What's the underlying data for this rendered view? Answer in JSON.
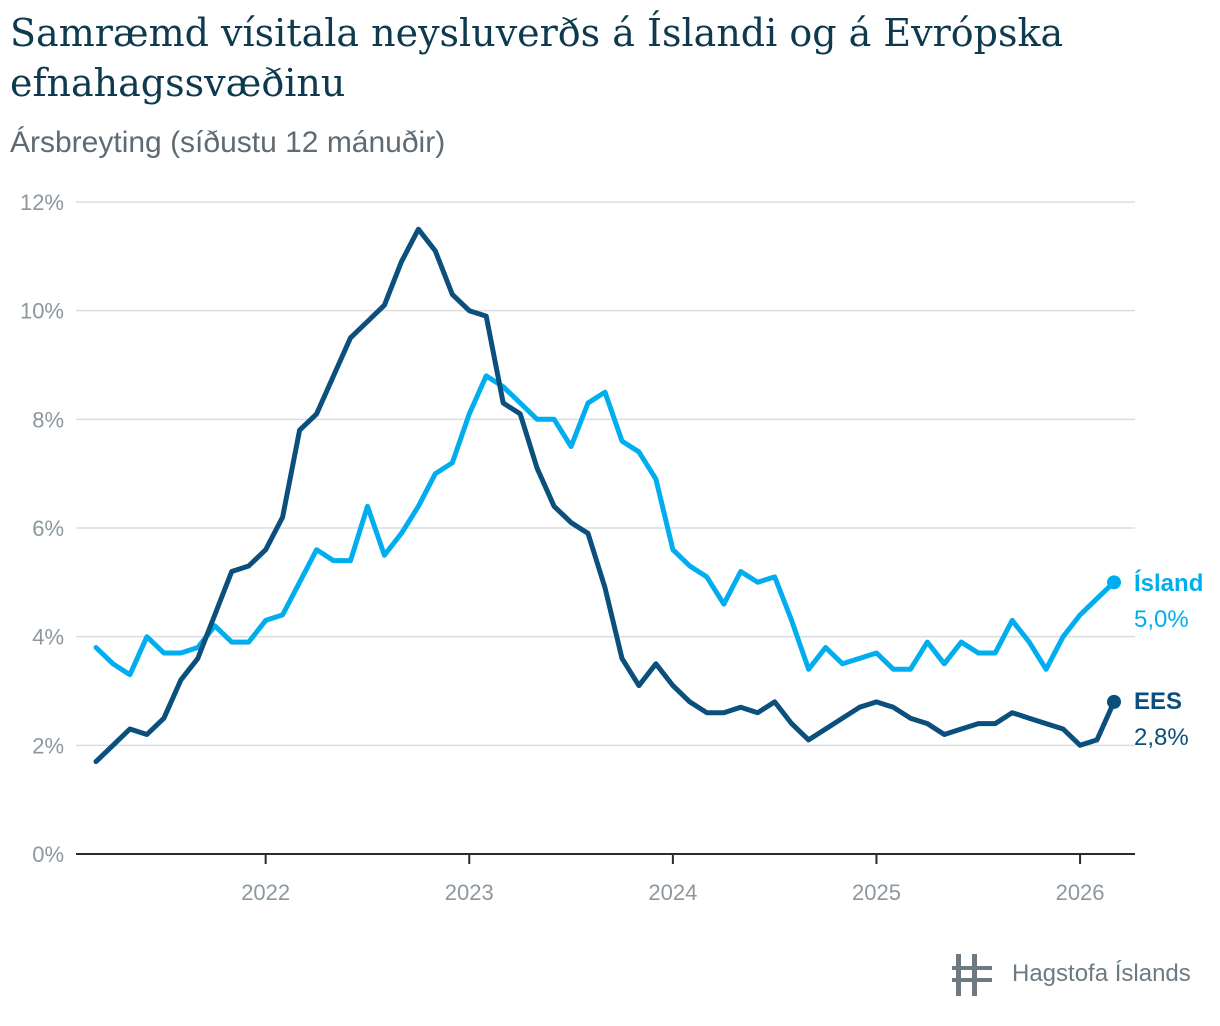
{
  "chart_data": {
    "type": "line",
    "title": "Samræmd vísitala neysluverðs á Íslandi og á Evrópska efnahagssvæðinu",
    "subtitle": "Ársbreyting (síðustu 12 mánuðir)",
    "x_start": "2021-03",
    "x_end": "2026-03",
    "x_ticks": [
      {
        "label": "2022",
        "value": 2022
      },
      {
        "label": "2023",
        "value": 2023
      },
      {
        "label": "2024",
        "value": 2024
      },
      {
        "label": "2025",
        "value": 2025
      },
      {
        "label": "2026",
        "value": 2026
      }
    ],
    "y_ticks": [
      {
        "label": "0%",
        "value": 0
      },
      {
        "label": "2%",
        "value": 2
      },
      {
        "label": "4%",
        "value": 4
      },
      {
        "label": "6%",
        "value": 6
      },
      {
        "label": "8%",
        "value": 8
      },
      {
        "label": "10%",
        "value": 10
      },
      {
        "label": "12%",
        "value": 12
      }
    ],
    "ylim": [
      0,
      12
    ],
    "series": [
      {
        "name": "Ísland",
        "end_label": "5,0%",
        "color": "#00aeef",
        "values": [
          3.8,
          3.5,
          3.3,
          4.0,
          3.7,
          3.7,
          3.8,
          4.2,
          3.9,
          3.9,
          4.3,
          4.4,
          5.0,
          5.6,
          5.4,
          5.4,
          6.4,
          5.5,
          5.9,
          6.4,
          7.0,
          7.2,
          8.1,
          8.8,
          8.6,
          8.3,
          8.0,
          8.0,
          7.5,
          8.3,
          8.5,
          7.6,
          7.4,
          6.9,
          5.6,
          5.3,
          5.1,
          4.6,
          5.2,
          5.0,
          5.1,
          4.3,
          3.4,
          3.8,
          3.5,
          3.6,
          3.7,
          3.4,
          3.4,
          3.9,
          3.5,
          3.9,
          3.7,
          3.7,
          4.3,
          3.9,
          3.4,
          4.0,
          4.4,
          4.7,
          5.0
        ]
      },
      {
        "name": "EES",
        "end_label": "2,8%",
        "color": "#0b4f7c",
        "values": [
          1.7,
          2.0,
          2.3,
          2.2,
          2.5,
          3.2,
          3.6,
          4.4,
          5.2,
          5.3,
          5.6,
          6.2,
          7.8,
          8.1,
          8.8,
          9.5,
          9.8,
          10.1,
          10.9,
          11.5,
          11.1,
          10.3,
          10.0,
          9.9,
          8.3,
          8.1,
          7.1,
          6.4,
          6.1,
          5.9,
          4.9,
          3.6,
          3.1,
          3.5,
          3.1,
          2.8,
          2.6,
          2.6,
          2.7,
          2.6,
          2.8,
          2.4,
          2.1,
          2.3,
          2.5,
          2.7,
          2.8,
          2.7,
          2.5,
          2.4,
          2.2,
          2.3,
          2.4,
          2.4,
          2.6,
          2.5,
          2.4,
          2.3,
          2.0,
          2.1,
          2.8
        ]
      }
    ]
  },
  "logo": {
    "text": "Hagstofa Íslands"
  },
  "colors": {
    "axis": "#2b2b2b",
    "grid": "#d9dde0",
    "tick": "#8c979e",
    "title": "#0e3a4f"
  }
}
